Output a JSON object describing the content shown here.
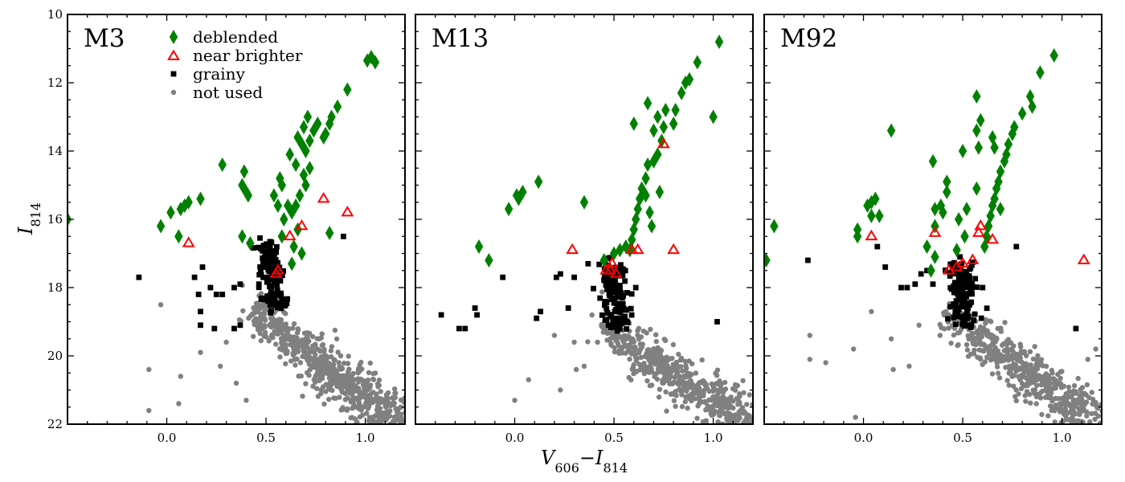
{
  "chart_data": {
    "type": "scatter",
    "xlabel": "V606−I814",
    "ylabel": "I814",
    "xlim": [
      -0.5,
      1.2
    ],
    "ylim": [
      22,
      10
    ],
    "y_inverted": true,
    "x_ticks": [
      0.0,
      0.5,
      1.0
    ],
    "x_tick_labels": [
      "0.0",
      "0.5",
      "1.0"
    ],
    "y_ticks": [
      10,
      12,
      14,
      16,
      18,
      20,
      22
    ],
    "y_tick_labels": [
      "10",
      "12",
      "14",
      "16",
      "18",
      "20",
      "22"
    ],
    "legend": {
      "location": "top-left",
      "entries": [
        {
          "label": "deblended",
          "marker": "thin_diamond",
          "color": "#008000"
        },
        {
          "label": "near brighter",
          "marker": "open_triangle",
          "color": "#ff0000"
        },
        {
          "label": "grainy",
          "marker": "square",
          "color": "#000000"
        },
        {
          "label": "not used",
          "marker": "circle",
          "color": "#808080"
        }
      ]
    },
    "series_styles": {
      "deblended": {
        "color": "#008000"
      },
      "near_brighter": {
        "color": "#ff0000"
      },
      "grainy": {
        "color": "#000000"
      },
      "not_used": {
        "color": "#808080"
      }
    },
    "panels": [
      {
        "title": "M3",
        "deblended": [
          [
            1.05,
            11.4
          ],
          [
            1.03,
            11.25
          ],
          [
            1.01,
            11.35
          ],
          [
            0.91,
            12.2
          ],
          [
            0.86,
            12.7
          ],
          [
            0.83,
            13.0
          ],
          [
            0.82,
            13.2
          ],
          [
            0.8,
            13.5
          ],
          [
            0.79,
            13.6
          ],
          [
            0.76,
            13.2
          ],
          [
            0.74,
            13.4
          ],
          [
            0.71,
            13.0
          ],
          [
            0.72,
            13.7
          ],
          [
            0.69,
            13.3
          ],
          [
            0.68,
            13.8
          ],
          [
            0.7,
            14.0
          ],
          [
            0.66,
            13.6
          ],
          [
            0.65,
            14.4
          ],
          [
            0.62,
            14.1
          ],
          [
            0.72,
            14.5
          ],
          [
            0.69,
            14.7
          ],
          [
            0.7,
            15.0
          ],
          [
            0.67,
            15.3
          ],
          [
            0.65,
            15.6
          ],
          [
            0.63,
            15.8
          ],
          [
            0.61,
            15.6
          ],
          [
            0.59,
            16.0
          ],
          [
            0.58,
            15.0
          ],
          [
            0.57,
            14.8
          ],
          [
            0.54,
            15.3
          ],
          [
            0.56,
            15.6
          ],
          [
            0.66,
            16.3
          ],
          [
            0.64,
            16.8
          ],
          [
            0.68,
            17.0
          ],
          [
            0.63,
            17.3
          ],
          [
            0.58,
            16.5
          ],
          [
            0.4,
            15.2
          ],
          [
            0.38,
            15.0
          ],
          [
            0.41,
            15.3
          ],
          [
            0.39,
            14.6
          ],
          [
            0.28,
            14.4
          ],
          [
            0.17,
            15.4
          ],
          [
            0.11,
            15.5
          ],
          [
            0.09,
            15.6
          ],
          [
            0.07,
            15.7
          ],
          [
            0.02,
            15.8
          ],
          [
            -0.03,
            16.2
          ],
          [
            0.06,
            16.5
          ],
          [
            0.38,
            16.5
          ],
          [
            0.42,
            16.7
          ],
          [
            0.82,
            16.4
          ],
          [
            -0.52,
            15.7
          ],
          [
            -0.5,
            16.0
          ]
        ],
        "near_brighter": [
          [
            0.11,
            16.7
          ],
          [
            0.62,
            16.5
          ],
          [
            0.68,
            16.2
          ],
          [
            0.79,
            15.4
          ],
          [
            0.91,
            15.8
          ],
          [
            0.55,
            17.6
          ],
          [
            0.56,
            17.5
          ]
        ],
        "grainy_cluster": {
          "x": [
            0.4,
            0.65
          ],
          "y": [
            16.7,
            18.6
          ],
          "count": 130
        },
        "grainy_extra": [
          [
            -0.14,
            17.7
          ],
          [
            0.14,
            17.7
          ],
          [
            0.18,
            17.4
          ],
          [
            0.16,
            18.2
          ],
          [
            0.17,
            18.7
          ],
          [
            0.17,
            19.1
          ],
          [
            0.22,
            18.0
          ],
          [
            0.25,
            18.2
          ],
          [
            0.28,
            18.2
          ],
          [
            0.34,
            18.0
          ],
          [
            0.37,
            17.9
          ],
          [
            0.37,
            19.1
          ],
          [
            0.24,
            19.2
          ],
          [
            0.34,
            19.2
          ],
          [
            0.89,
            16.5
          ]
        ],
        "not_used_cluster": {
          "x0": 0.42,
          "y0": 18.6,
          "x1": 1.15,
          "y1": 21.9,
          "count": 650
        },
        "not_used_extra": [
          [
            -0.03,
            18.5
          ],
          [
            -0.09,
            20.4
          ],
          [
            0.07,
            20.6
          ],
          [
            0.06,
            21.4
          ],
          [
            -0.09,
            21.6
          ],
          [
            0.17,
            19.9
          ],
          [
            0.3,
            19.6
          ],
          [
            0.27,
            20.3
          ],
          [
            0.35,
            20.8
          ],
          [
            0.4,
            21.3
          ]
        ]
      },
      {
        "title": "M13",
        "deblended": [
          [
            1.03,
            10.8
          ],
          [
            0.92,
            11.4
          ],
          [
            0.88,
            11.9
          ],
          [
            0.86,
            12.0
          ],
          [
            0.84,
            12.3
          ],
          [
            0.81,
            12.8
          ],
          [
            0.8,
            13.2
          ],
          [
            0.76,
            12.8
          ],
          [
            0.75,
            13.3
          ],
          [
            0.72,
            13.0
          ],
          [
            0.7,
            13.4
          ],
          [
            0.67,
            12.6
          ],
          [
            0.6,
            13.2
          ],
          [
            0.74,
            13.7
          ],
          [
            0.72,
            14.1
          ],
          [
            0.7,
            14.3
          ],
          [
            0.67,
            14.4
          ],
          [
            0.66,
            14.8
          ],
          [
            0.64,
            15.1
          ],
          [
            0.63,
            15.4
          ],
          [
            0.62,
            15.7
          ],
          [
            0.61,
            16.0
          ],
          [
            0.6,
            16.3
          ],
          [
            0.59,
            16.6
          ],
          [
            0.58,
            16.9
          ],
          [
            0.66,
            15.3
          ],
          [
            0.68,
            15.8
          ],
          [
            0.69,
            16.2
          ],
          [
            0.73,
            15.2
          ],
          [
            1.0,
            13.0
          ],
          [
            0.35,
            15.5
          ],
          [
            0.12,
            14.9
          ],
          [
            0.04,
            15.2
          ],
          [
            0.01,
            15.3
          ],
          [
            0.02,
            15.4
          ],
          [
            -0.03,
            15.7
          ],
          [
            -0.18,
            16.8
          ],
          [
            -0.13,
            17.2
          ],
          [
            0.45,
            17.2
          ],
          [
            0.5,
            17.0
          ],
          [
            0.53,
            16.9
          ],
          [
            0.56,
            16.8
          ]
        ],
        "near_brighter": [
          [
            0.75,
            13.8
          ],
          [
            0.29,
            16.9
          ],
          [
            0.59,
            16.9
          ],
          [
            0.62,
            16.9
          ],
          [
            0.8,
            16.9
          ],
          [
            0.46,
            17.5
          ],
          [
            0.48,
            17.5
          ],
          [
            0.49,
            17.3
          ],
          [
            0.51,
            17.6
          ]
        ],
        "grainy_cluster": {
          "x": [
            0.43,
            0.58
          ],
          "y": [
            17.3,
            19.3
          ],
          "count": 150
        },
        "grainy_extra": [
          [
            -0.37,
            18.8
          ],
          [
            -0.28,
            19.2
          ],
          [
            -0.25,
            19.2
          ],
          [
            -0.2,
            18.6
          ],
          [
            -0.19,
            18.8
          ],
          [
            -0.06,
            17.7
          ],
          [
            0.11,
            18.9
          ],
          [
            0.13,
            18.7
          ],
          [
            0.21,
            17.7
          ],
          [
            0.23,
            17.6
          ],
          [
            0.27,
            18.6
          ],
          [
            0.3,
            17.7
          ],
          [
            0.37,
            17.3
          ],
          [
            0.61,
            18.0
          ],
          [
            1.02,
            19.0
          ]
        ],
        "not_used_cluster": {
          "x0": 0.45,
          "y0": 19.1,
          "x1": 1.15,
          "y1": 21.9,
          "count": 550
        },
        "not_used_extra": [
          [
            0.0,
            21.3
          ],
          [
            0.07,
            20.7
          ],
          [
            0.2,
            19.4
          ],
          [
            0.3,
            19.6
          ],
          [
            0.35,
            20.3
          ],
          [
            0.31,
            20.4
          ],
          [
            0.23,
            21.0
          ]
        ]
      },
      {
        "title": "M92",
        "deblended": [
          [
            0.96,
            11.2
          ],
          [
            0.89,
            11.7
          ],
          [
            0.84,
            12.4
          ],
          [
            0.85,
            12.7
          ],
          [
            0.8,
            12.9
          ],
          [
            0.76,
            13.3
          ],
          [
            0.75,
            13.5
          ],
          [
            0.73,
            13.8
          ],
          [
            0.72,
            14.1
          ],
          [
            0.71,
            14.3
          ],
          [
            0.69,
            14.6
          ],
          [
            0.68,
            14.9
          ],
          [
            0.67,
            15.1
          ],
          [
            0.66,
            15.4
          ],
          [
            0.65,
            15.6
          ],
          [
            0.64,
            15.9
          ],
          [
            0.63,
            16.2
          ],
          [
            0.62,
            16.5
          ],
          [
            0.61,
            16.8
          ],
          [
            0.69,
            15.7
          ],
          [
            0.65,
            13.6
          ],
          [
            0.66,
            13.9
          ],
          [
            0.57,
            12.4
          ],
          [
            0.59,
            13.1
          ],
          [
            0.57,
            13.4
          ],
          [
            0.58,
            13.9
          ],
          [
            0.5,
            14.0
          ],
          [
            0.57,
            15.1
          ],
          [
            0.52,
            15.7
          ],
          [
            0.48,
            16.0
          ],
          [
            0.51,
            16.5
          ],
          [
            0.47,
            16.9
          ],
          [
            0.42,
            14.9
          ],
          [
            0.42,
            15.2
          ],
          [
            0.39,
            15.6
          ],
          [
            0.36,
            15.7
          ],
          [
            0.35,
            14.3
          ],
          [
            0.4,
            15.8
          ],
          [
            0.36,
            16.2
          ],
          [
            0.32,
            16.8
          ],
          [
            0.36,
            17.1
          ],
          [
            0.34,
            17.5
          ],
          [
            0.14,
            13.4
          ],
          [
            0.06,
            15.4
          ],
          [
            0.04,
            15.5
          ],
          [
            0.02,
            15.6
          ],
          [
            0.08,
            15.9
          ],
          [
            0.04,
            15.9
          ],
          [
            -0.03,
            16.3
          ],
          [
            -0.03,
            16.5
          ],
          [
            -0.45,
            16.2
          ],
          [
            -0.49,
            17.2
          ]
        ],
        "near_brighter": [
          [
            0.04,
            16.5
          ],
          [
            0.36,
            16.4
          ],
          [
            0.59,
            16.2
          ],
          [
            0.58,
            16.4
          ],
          [
            0.65,
            16.6
          ],
          [
            0.43,
            17.5
          ],
          [
            0.47,
            17.4
          ],
          [
            0.5,
            17.3
          ],
          [
            0.55,
            17.2
          ],
          [
            1.11,
            17.2
          ]
        ],
        "grainy_cluster": {
          "x": [
            0.4,
            0.6
          ],
          "y": [
            17.3,
            19.1
          ],
          "count": 140
        },
        "grainy_extra": [
          [
            -0.28,
            17.2
          ],
          [
            0.07,
            16.8
          ],
          [
            0.11,
            17.4
          ],
          [
            0.19,
            18.0
          ],
          [
            0.22,
            18.0
          ],
          [
            0.26,
            17.9
          ],
          [
            0.29,
            17.6
          ],
          [
            0.32,
            17.5
          ],
          [
            0.35,
            17.9
          ],
          [
            0.6,
            18.0
          ],
          [
            0.77,
            16.8
          ],
          [
            1.07,
            19.2
          ]
        ],
        "not_used_cluster": {
          "x0": 0.42,
          "y0": 18.7,
          "x1": 1.15,
          "y1": 21.9,
          "count": 500
        },
        "not_used_extra": [
          [
            -0.27,
            19.4
          ],
          [
            -0.27,
            20.1
          ],
          [
            -0.19,
            20.2
          ],
          [
            -0.04,
            21.8
          ],
          [
            -0.05,
            19.8
          ],
          [
            0.04,
            18.7
          ],
          [
            0.14,
            19.5
          ],
          [
            0.15,
            20.4
          ],
          [
            0.23,
            20.3
          ],
          [
            0.28,
            19.1
          ],
          [
            1.17,
            19.8
          ],
          [
            1.13,
            20.1
          ]
        ]
      }
    ]
  }
}
